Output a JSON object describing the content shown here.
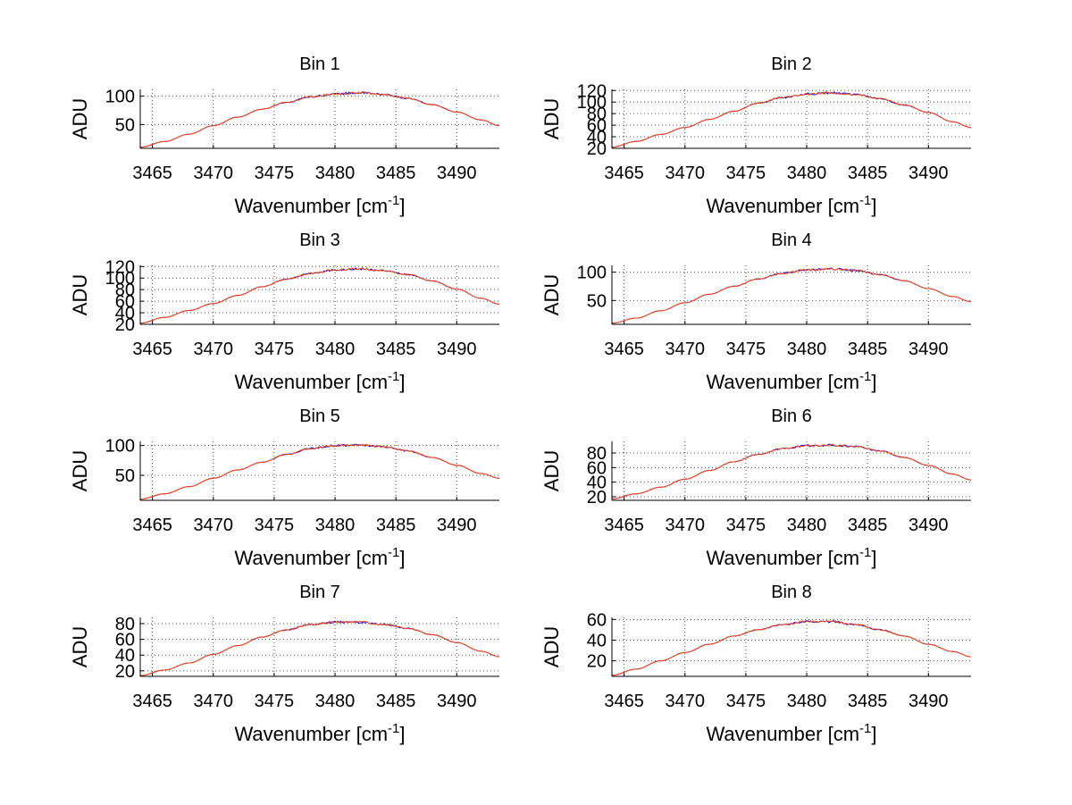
{
  "chart_data": [
    {
      "type": "line",
      "title": "Bin 1",
      "xlabel": "Wavenumber [cm",
      "xlabel_sup": "-1",
      "xlabel_end": "]",
      "ylabel": "ADU",
      "xlim": [
        3464,
        3493.5
      ],
      "ylim": [
        8,
        112
      ],
      "xticks": [
        3465,
        3470,
        3475,
        3480,
        3485,
        3490
      ],
      "yticks": [
        50,
        100
      ],
      "grid": true,
      "series": [
        {
          "color": "#0000ff",
          "x": [
            3464,
            3466,
            3468,
            3470,
            3472,
            3474,
            3476,
            3478,
            3480,
            3482,
            3484,
            3486,
            3488,
            3490,
            3492,
            3493.5
          ],
          "y": [
            10,
            20,
            33,
            48,
            63,
            77,
            89,
            99,
            104,
            106,
            103,
            96,
            85,
            72,
            58,
            48
          ]
        },
        {
          "color": "#ff4500",
          "x": [
            3464,
            3466,
            3468,
            3470,
            3472,
            3474,
            3476,
            3478,
            3480,
            3482,
            3484,
            3486,
            3488,
            3490,
            3492,
            3493.5
          ],
          "y": [
            10,
            20,
            33,
            48,
            63,
            77,
            89,
            99,
            104,
            106,
            103,
            96,
            85,
            72,
            58,
            48
          ]
        }
      ]
    },
    {
      "type": "line",
      "title": "Bin 2",
      "xlabel": "Wavenumber [cm",
      "xlabel_sup": "-1",
      "xlabel_end": "]",
      "ylabel": "ADU",
      "xlim": [
        3464,
        3493.5
      ],
      "ylim": [
        20,
        122
      ],
      "xticks": [
        3465,
        3470,
        3475,
        3480,
        3485,
        3490
      ],
      "yticks": [
        20,
        40,
        60,
        80,
        100,
        120
      ],
      "ytick_labels": [
        "20",
        "40",
        "60",
        "80",
        "100",
        "120"
      ],
      "grid": true,
      "series": [
        {
          "color": "#0000ff",
          "x": [
            3464,
            3466,
            3468,
            3470,
            3472,
            3474,
            3476,
            3478,
            3480,
            3482,
            3484,
            3486,
            3488,
            3490,
            3492,
            3493.5
          ],
          "y": [
            22,
            32,
            44,
            56,
            70,
            84,
            98,
            108,
            114,
            116,
            113,
            106,
            95,
            82,
            66,
            56
          ]
        },
        {
          "color": "#ff4500",
          "x": [
            3464,
            3466,
            3468,
            3470,
            3472,
            3474,
            3476,
            3478,
            3480,
            3482,
            3484,
            3486,
            3488,
            3490,
            3492,
            3493.5
          ],
          "y": [
            22,
            32,
            44,
            56,
            70,
            84,
            98,
            108,
            114,
            116,
            113,
            106,
            95,
            82,
            66,
            56
          ]
        }
      ]
    },
    {
      "type": "line",
      "title": "Bin 3",
      "xlabel": "Wavenumber [cm",
      "xlabel_sup": "-1",
      "xlabel_end": "]",
      "ylabel": "ADU",
      "xlim": [
        3464,
        3493.5
      ],
      "ylim": [
        20,
        122
      ],
      "xticks": [
        3465,
        3470,
        3475,
        3480,
        3485,
        3490
      ],
      "yticks": [
        20,
        40,
        60,
        80,
        100,
        120
      ],
      "ytick_labels": [
        "20",
        "40",
        "60",
        "80",
        "100",
        "120"
      ],
      "grid": true,
      "series": [
        {
          "color": "#0000ff",
          "x": [
            3464,
            3466,
            3468,
            3470,
            3472,
            3474,
            3476,
            3478,
            3480,
            3482,
            3484,
            3486,
            3488,
            3490,
            3492,
            3493.5
          ],
          "y": [
            22,
            32,
            44,
            56,
            70,
            85,
            98,
            108,
            114,
            116,
            113,
            106,
            95,
            81,
            65,
            55
          ]
        },
        {
          "color": "#ff4500",
          "x": [
            3464,
            3466,
            3468,
            3470,
            3472,
            3474,
            3476,
            3478,
            3480,
            3482,
            3484,
            3486,
            3488,
            3490,
            3492,
            3493.5
          ],
          "y": [
            22,
            32,
            44,
            56,
            70,
            85,
            98,
            108,
            114,
            116,
            113,
            106,
            95,
            81,
            65,
            55
          ]
        }
      ]
    },
    {
      "type": "line",
      "title": "Bin 4",
      "xlabel": "Wavenumber [cm",
      "xlabel_sup": "-1",
      "xlabel_end": "]",
      "ylabel": "ADU",
      "xlim": [
        3464,
        3493.5
      ],
      "ylim": [
        8,
        112
      ],
      "xticks": [
        3465,
        3470,
        3475,
        3480,
        3485,
        3490
      ],
      "yticks": [
        50,
        100
      ],
      "grid": true,
      "series": [
        {
          "color": "#0000ff",
          "x": [
            3464,
            3466,
            3468,
            3470,
            3472,
            3474,
            3476,
            3478,
            3480,
            3482,
            3484,
            3486,
            3488,
            3490,
            3492,
            3493.5
          ],
          "y": [
            10,
            19,
            32,
            46,
            61,
            75,
            88,
            98,
            104,
            106,
            103,
            96,
            85,
            71,
            57,
            48
          ]
        },
        {
          "color": "#ff4500",
          "x": [
            3464,
            3466,
            3468,
            3470,
            3472,
            3474,
            3476,
            3478,
            3480,
            3482,
            3484,
            3486,
            3488,
            3490,
            3492,
            3493.5
          ],
          "y": [
            10,
            19,
            32,
            46,
            61,
            75,
            88,
            98,
            104,
            106,
            103,
            96,
            85,
            71,
            57,
            48
          ]
        }
      ]
    },
    {
      "type": "line",
      "title": "Bin 5",
      "xlabel": "Wavenumber [cm",
      "xlabel_sup": "-1",
      "xlabel_end": "]",
      "ylabel": "ADU",
      "xlim": [
        3464,
        3493.5
      ],
      "ylim": [
        8,
        107
      ],
      "xticks": [
        3465,
        3470,
        3475,
        3480,
        3485,
        3490
      ],
      "yticks": [
        50,
        100
      ],
      "grid": true,
      "series": [
        {
          "color": "#0000ff",
          "x": [
            3464,
            3466,
            3468,
            3470,
            3472,
            3474,
            3476,
            3478,
            3480,
            3482,
            3484,
            3486,
            3488,
            3490,
            3492,
            3493.5
          ],
          "y": [
            10,
            19,
            31,
            45,
            59,
            72,
            85,
            95,
            100,
            101,
            98,
            91,
            80,
            67,
            53,
            45
          ]
        },
        {
          "color": "#ff4500",
          "x": [
            3464,
            3466,
            3468,
            3470,
            3472,
            3474,
            3476,
            3478,
            3480,
            3482,
            3484,
            3486,
            3488,
            3490,
            3492,
            3493.5
          ],
          "y": [
            10,
            19,
            31,
            45,
            59,
            72,
            85,
            95,
            100,
            101,
            98,
            91,
            80,
            67,
            53,
            45
          ]
        }
      ]
    },
    {
      "type": "line",
      "title": "Bin 6",
      "xlabel": "Wavenumber [cm",
      "xlabel_sup": "-1",
      "xlabel_end": "]",
      "ylabel": "ADU",
      "xlim": [
        3464,
        3493.5
      ],
      "ylim": [
        15,
        96
      ],
      "xticks": [
        3465,
        3470,
        3475,
        3480,
        3485,
        3490
      ],
      "yticks": [
        20,
        40,
        60,
        80
      ],
      "grid": true,
      "series": [
        {
          "color": "#0000ff",
          "x": [
            3464,
            3466,
            3468,
            3470,
            3472,
            3474,
            3476,
            3478,
            3480,
            3482,
            3484,
            3486,
            3488,
            3490,
            3492,
            3493.5
          ],
          "y": [
            17,
            24,
            33,
            44,
            56,
            68,
            78,
            86,
            90,
            91,
            89,
            83,
            74,
            63,
            51,
            43
          ]
        },
        {
          "color": "#ff4500",
          "x": [
            3464,
            3466,
            3468,
            3470,
            3472,
            3474,
            3476,
            3478,
            3480,
            3482,
            3484,
            3486,
            3488,
            3490,
            3492,
            3493.5
          ],
          "y": [
            17,
            24,
            33,
            44,
            56,
            68,
            78,
            86,
            90,
            91,
            89,
            83,
            74,
            63,
            51,
            43
          ]
        }
      ]
    },
    {
      "type": "line",
      "title": "Bin 7",
      "xlabel": "Wavenumber [cm",
      "xlabel_sup": "-1",
      "xlabel_end": "]",
      "ylabel": "ADU",
      "xlim": [
        3464,
        3493.5
      ],
      "ylim": [
        13,
        88
      ],
      "xticks": [
        3465,
        3470,
        3475,
        3480,
        3485,
        3490
      ],
      "yticks": [
        20,
        40,
        60,
        80
      ],
      "grid": true,
      "series": [
        {
          "color": "#0000ff",
          "x": [
            3464,
            3466,
            3468,
            3470,
            3472,
            3474,
            3476,
            3478,
            3480,
            3482,
            3484,
            3486,
            3488,
            3490,
            3492,
            3493.5
          ],
          "y": [
            14,
            21,
            30,
            41,
            52,
            63,
            72,
            79,
            82,
            82,
            79,
            74,
            66,
            56,
            45,
            38
          ]
        },
        {
          "color": "#ff4500",
          "x": [
            3464,
            3466,
            3468,
            3470,
            3472,
            3474,
            3476,
            3478,
            3480,
            3482,
            3484,
            3486,
            3488,
            3490,
            3492,
            3493.5
          ],
          "y": [
            14,
            21,
            30,
            41,
            52,
            63,
            72,
            79,
            82,
            82,
            79,
            74,
            66,
            56,
            45,
            38
          ]
        }
      ]
    },
    {
      "type": "line",
      "title": "Bin 8",
      "xlabel": "Wavenumber [cm",
      "xlabel_sup": "-1",
      "xlabel_end": "]",
      "ylabel": "ADU",
      "xlim": [
        3464,
        3493.5
      ],
      "ylim": [
        5,
        62
      ],
      "xticks": [
        3465,
        3470,
        3475,
        3480,
        3485,
        3490
      ],
      "yticks": [
        20,
        40,
        60
      ],
      "grid": true,
      "series": [
        {
          "color": "#0000ff",
          "x": [
            3464,
            3466,
            3468,
            3470,
            3472,
            3474,
            3476,
            3478,
            3480,
            3482,
            3484,
            3486,
            3488,
            3490,
            3492,
            3493.5
          ],
          "y": [
            6,
            12,
            20,
            28,
            36,
            44,
            50,
            55,
            58,
            58,
            55,
            50,
            44,
            36,
            29,
            24
          ]
        },
        {
          "color": "#ff4500",
          "x": [
            3464,
            3466,
            3468,
            3470,
            3472,
            3474,
            3476,
            3478,
            3480,
            3482,
            3484,
            3486,
            3488,
            3490,
            3492,
            3493.5
          ],
          "y": [
            6,
            12,
            20,
            28,
            36,
            44,
            50,
            55,
            58,
            58,
            55,
            50,
            44,
            36,
            29,
            24
          ]
        }
      ]
    }
  ]
}
